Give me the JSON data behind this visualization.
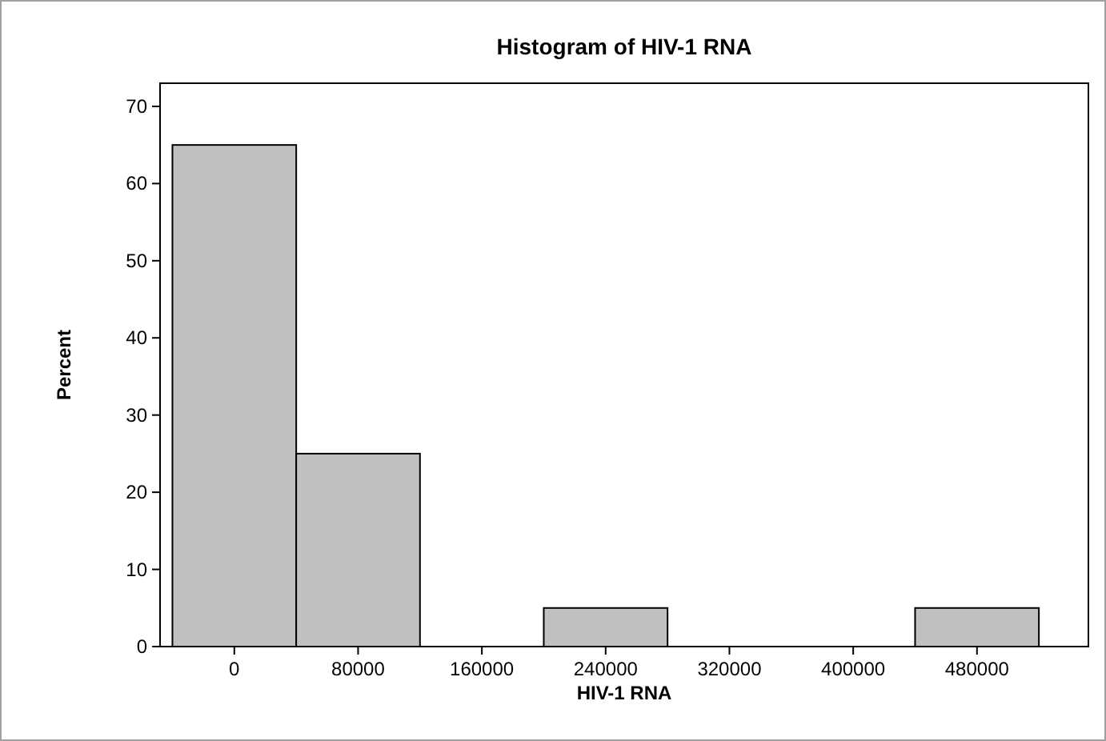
{
  "chart_data": {
    "type": "histogram",
    "title": "Histogram of HIV-1 RNA",
    "xlabel": "HIV-1 RNA",
    "ylabel": "Percent",
    "bins": [
      -40000,
      40000,
      120000,
      200000,
      280000,
      360000,
      440000,
      520000
    ],
    "values": [
      65,
      25,
      0,
      5,
      0,
      0,
      5
    ],
    "color": "#c0c0c0",
    "xlim": [
      -48000,
      552000
    ],
    "xticks": [
      0,
      80000,
      160000,
      240000,
      320000,
      400000,
      480000
    ],
    "ylim": [
      0,
      73
    ],
    "yticks": [
      0,
      10,
      20,
      30,
      40,
      50,
      60,
      70
    ]
  }
}
